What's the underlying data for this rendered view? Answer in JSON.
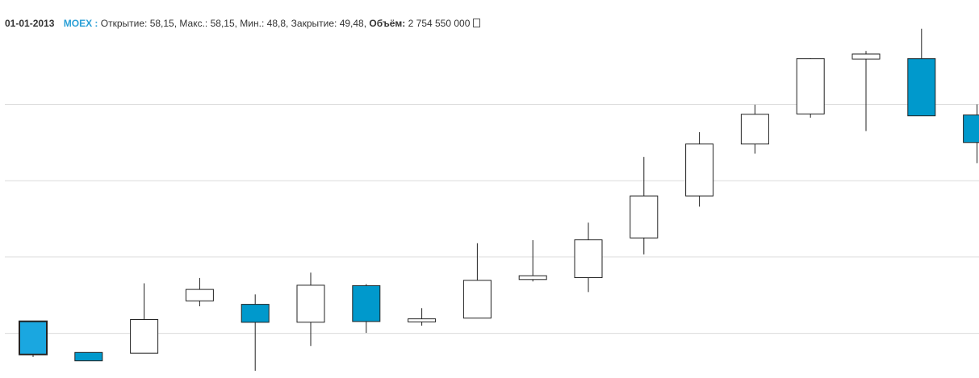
{
  "info_bar": {
    "date": "01-01-2013",
    "ticker": "MOEX :",
    "open_label": "Открытие:",
    "open_value": "58,15",
    "high_label": "Макс.:",
    "high_value": "58,15",
    "low_label": "Мин.:",
    "low_value": "48,8",
    "close_label": "Закрытие:",
    "close_value": "49,48",
    "volume_label": "Объём:",
    "volume_value": "2 754 550 000"
  },
  "colors": {
    "up_fill": "#ffffff",
    "down_fill": "#0099cc",
    "highlight_fill": "#1aa7e0",
    "stroke": "#222222",
    "grid": "#dcdcdc"
  },
  "chart_data": {
    "type": "candlestick",
    "grid": true,
    "ylim": [
      45,
      135
    ],
    "gridlines": [
      55,
      75,
      95,
      115
    ],
    "series": [
      {
        "open": 58.15,
        "high": 58.15,
        "low": 48.8,
        "close": 49.48
      },
      {
        "open": 50.0,
        "high": 50.0,
        "low": 47.8,
        "close": 47.8
      },
      {
        "open": 49.8,
        "high": 68.1,
        "low": 49.8,
        "close": 58.6
      },
      {
        "open": 63.5,
        "high": 69.5,
        "low": 62.1,
        "close": 66.5
      },
      {
        "open": 62.6,
        "high": 65.2,
        "low": 45.2,
        "close": 57.9
      },
      {
        "open": 57.9,
        "high": 70.9,
        "low": 51.7,
        "close": 67.6
      },
      {
        "open": 67.5,
        "high": 67.9,
        "low": 55.1,
        "close": 58.1
      },
      {
        "open": 58.0,
        "high": 61.6,
        "low": 57.0,
        "close": 58.8
      },
      {
        "open": 59.0,
        "high": 78.6,
        "low": 59.0,
        "close": 68.9
      },
      {
        "open": 69.1,
        "high": 79.4,
        "low": 68.6,
        "close": 70.1
      },
      {
        "open": 69.6,
        "high": 84.0,
        "low": 65.8,
        "close": 79.5
      },
      {
        "open": 80.0,
        "high": 101.2,
        "low": 75.7,
        "close": 91.0
      },
      {
        "open": 91.0,
        "high": 107.7,
        "low": 88.2,
        "close": 104.6
      },
      {
        "open": 104.6,
        "high": 114.9,
        "low": 102.1,
        "close": 112.4
      },
      {
        "open": 112.5,
        "high": 127.1,
        "low": 111.5,
        "close": 127.0
      },
      {
        "open": 126.9,
        "high": 129.0,
        "low": 108.0,
        "close": 128.2
      },
      {
        "open": 127.0,
        "high": 134.8,
        "low": 112.0,
        "close": 112.0
      },
      {
        "open": 112.2,
        "high": 115.0,
        "low": 99.6,
        "close": 105.0
      }
    ]
  }
}
